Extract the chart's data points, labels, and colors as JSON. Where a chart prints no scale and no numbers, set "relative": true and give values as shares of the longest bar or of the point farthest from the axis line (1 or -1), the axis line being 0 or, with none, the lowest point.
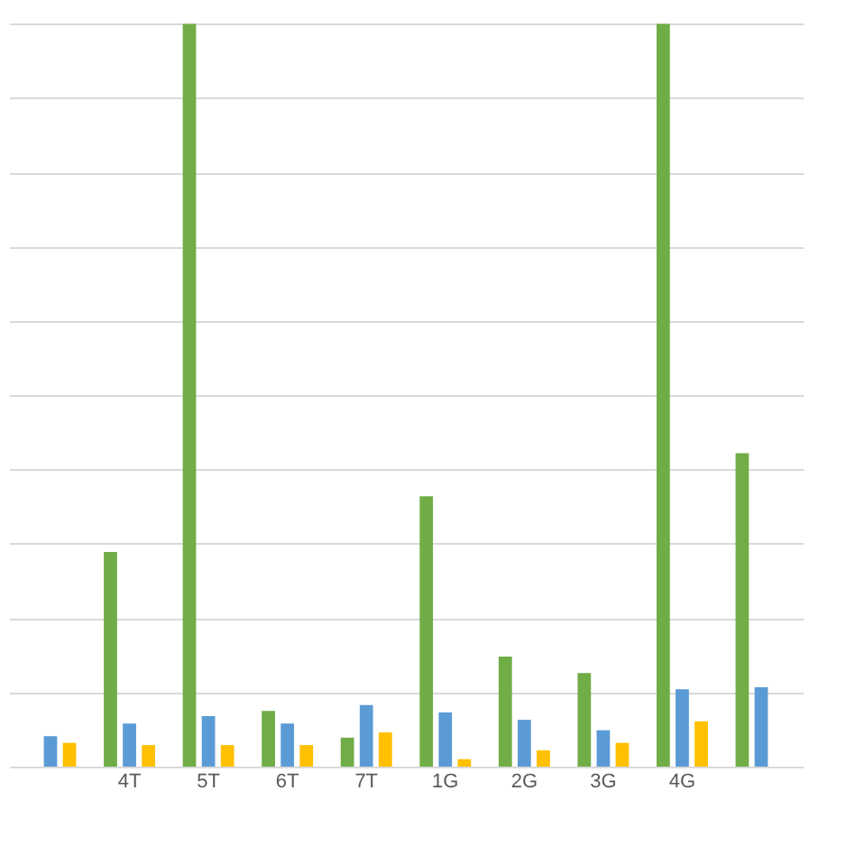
{
  "chart_data": {
    "type": "bar",
    "relative": true,
    "grid": "y",
    "legend": false,
    "categories": [
      null,
      "4T",
      "5T",
      "6T",
      "7T",
      "1G",
      "2G",
      "3G",
      "4G",
      null
    ],
    "series": [
      {
        "color": "#70ad47",
        "values": [
          null,
          0.289,
          1.0,
          0.075,
          0.039,
          0.364,
          0.148,
          0.126,
          1.0,
          0.422
        ]
      },
      {
        "color": "#5b9bd5",
        "values": [
          0.041,
          0.058,
          0.068,
          0.058,
          0.083,
          0.073,
          0.063,
          0.049,
          0.104,
          0.107
        ]
      },
      {
        "color": "#ffc000",
        "values": [
          0.032,
          0.029,
          0.029,
          0.029,
          0.046,
          0.01,
          0.022,
          0.032,
          0.061,
          null
        ]
      }
    ]
  }
}
